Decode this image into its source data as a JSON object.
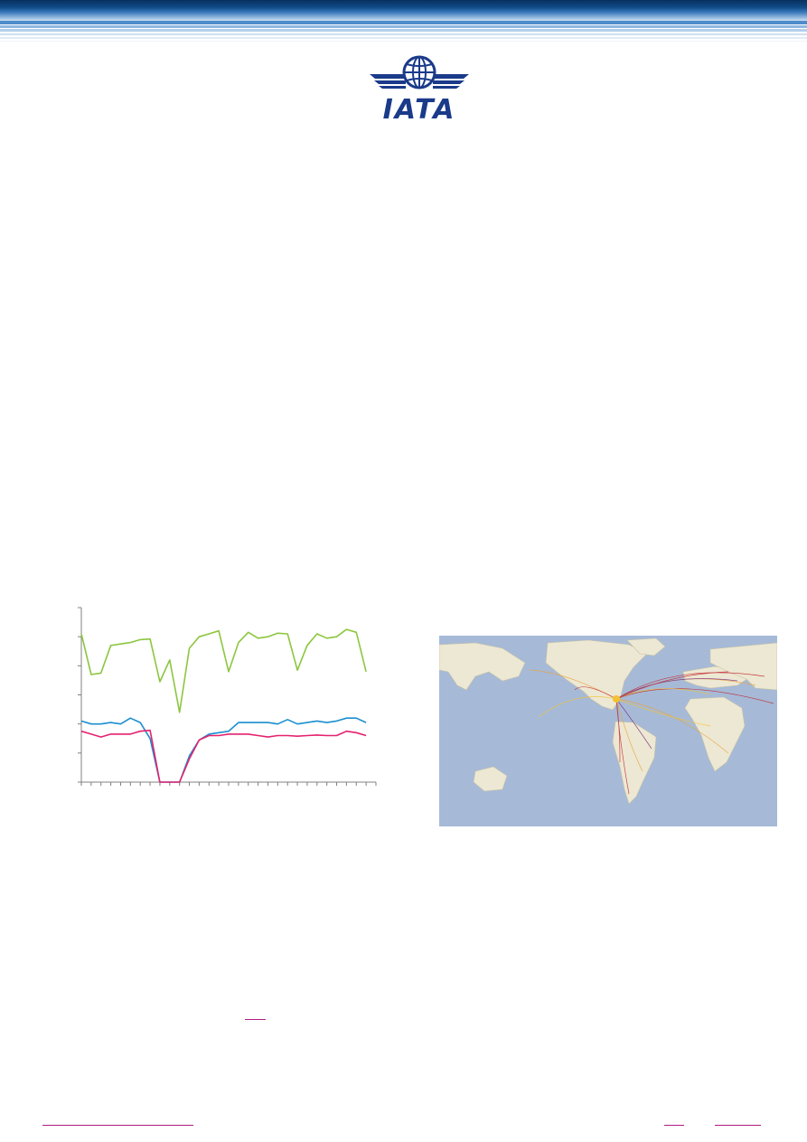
{
  "header": {
    "logo": {
      "icon": "iata-globe-wings-logo",
      "text": "IATA"
    },
    "colors": {
      "dark": "#0a3d73",
      "light": "#c7dcef"
    }
  },
  "chart_data": {
    "type": "line",
    "ylim": [
      0,
      6
    ],
    "x_count": 31,
    "grid": false,
    "series": [
      {
        "color": "#8cc63f",
        "values": [
          5.1,
          3.7,
          3.75,
          4.7,
          4.75,
          4.8,
          4.9,
          4.92,
          3.45,
          4.2,
          2.4,
          4.6,
          5.0,
          5.1,
          5.2,
          3.8,
          4.8,
          5.15,
          4.95,
          5.0,
          5.12,
          5.1,
          3.85,
          4.7,
          5.1,
          4.95,
          5.0,
          5.25,
          5.15,
          3.8,
          null
        ]
      },
      {
        "color": "#1b8ed0",
        "values": [
          2.1,
          2.0,
          2.0,
          2.05,
          2.0,
          2.2,
          2.05,
          1.5,
          0.0,
          0.0,
          0.0,
          0.9,
          1.45,
          1.65,
          1.7,
          1.75,
          2.05,
          2.05,
          2.05,
          2.05,
          2.0,
          2.15,
          2.0,
          2.05,
          2.1,
          2.05,
          2.1,
          2.2,
          2.2,
          2.05,
          null
        ]
      },
      {
        "color": "#e5226f",
        "values": [
          1.75,
          1.65,
          1.55,
          1.65,
          1.65,
          1.65,
          1.75,
          1.78,
          0.0,
          0.0,
          0.0,
          0.8,
          1.45,
          1.6,
          1.6,
          1.65,
          1.65,
          1.65,
          1.6,
          1.55,
          1.6,
          1.6,
          1.58,
          1.6,
          1.62,
          1.6,
          1.6,
          1.75,
          1.7,
          1.6,
          null
        ]
      }
    ]
  },
  "map": {
    "icon": "world-route-map",
    "ocean": "#a6bad7",
    "land": "#ede8d3"
  },
  "footer": {
    "link_color": "#b01b83"
  }
}
